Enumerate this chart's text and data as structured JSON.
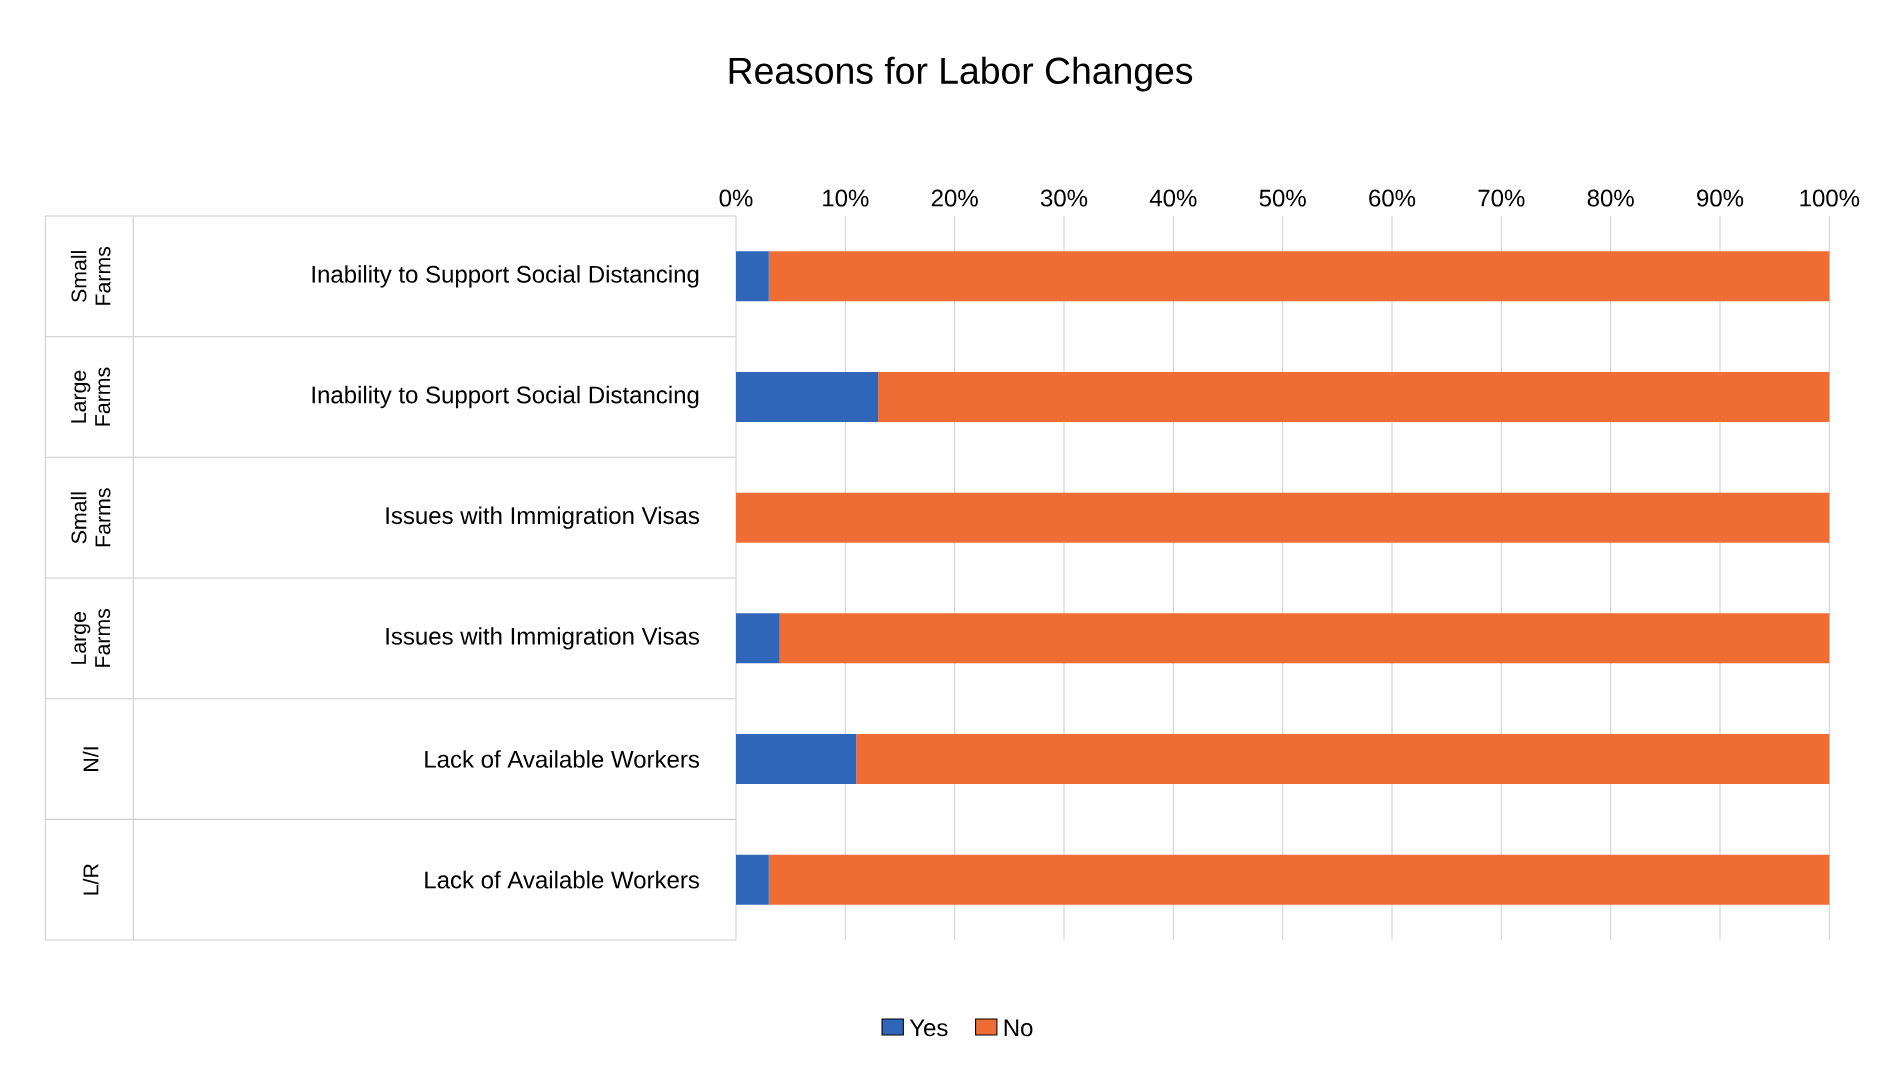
{
  "chart_data": {
    "type": "bar",
    "orientation": "horizontal",
    "stacked": true,
    "title": "Reasons for Labor Changes",
    "categories": [
      "Inability to Support Social Distancing",
      "Inability to Support Social Distancing",
      "Issues with Immigration Visas",
      "Issues with Immigration Visas",
      "Lack of Available Workers",
      "Lack of Available Workers"
    ],
    "series": [
      {
        "name": "Yes",
        "color": "#2f66b9",
        "values": [
          3,
          13,
          0,
          4,
          11,
          3
        ]
      },
      {
        "name": "No",
        "color": "#ef6c35",
        "values": [
          97,
          87,
          100,
          96,
          89,
          97
        ]
      }
    ],
    "annotations": [
      "Small Farms",
      "Large Farms",
      "Small Farms",
      "Large Farms",
      "N/I",
      "L/R"
    ],
    "xlim": [
      0,
      100
    ],
    "xticks": [
      {
        "value": 0,
        "label": "0%"
      },
      {
        "value": 10,
        "label": "10%"
      },
      {
        "value": 20,
        "label": "20%"
      },
      {
        "value": 30,
        "label": "30%"
      },
      {
        "value": 40,
        "label": "40%"
      },
      {
        "value": 50,
        "label": "50%"
      },
      {
        "value": 60,
        "label": "60%"
      },
      {
        "value": 70,
        "label": "70%"
      },
      {
        "value": 80,
        "label": "80%"
      },
      {
        "value": 90,
        "label": "90%"
      },
      {
        "value": 100,
        "label": "100%"
      }
    ],
    "grid": "x",
    "legend": "bottom"
  }
}
